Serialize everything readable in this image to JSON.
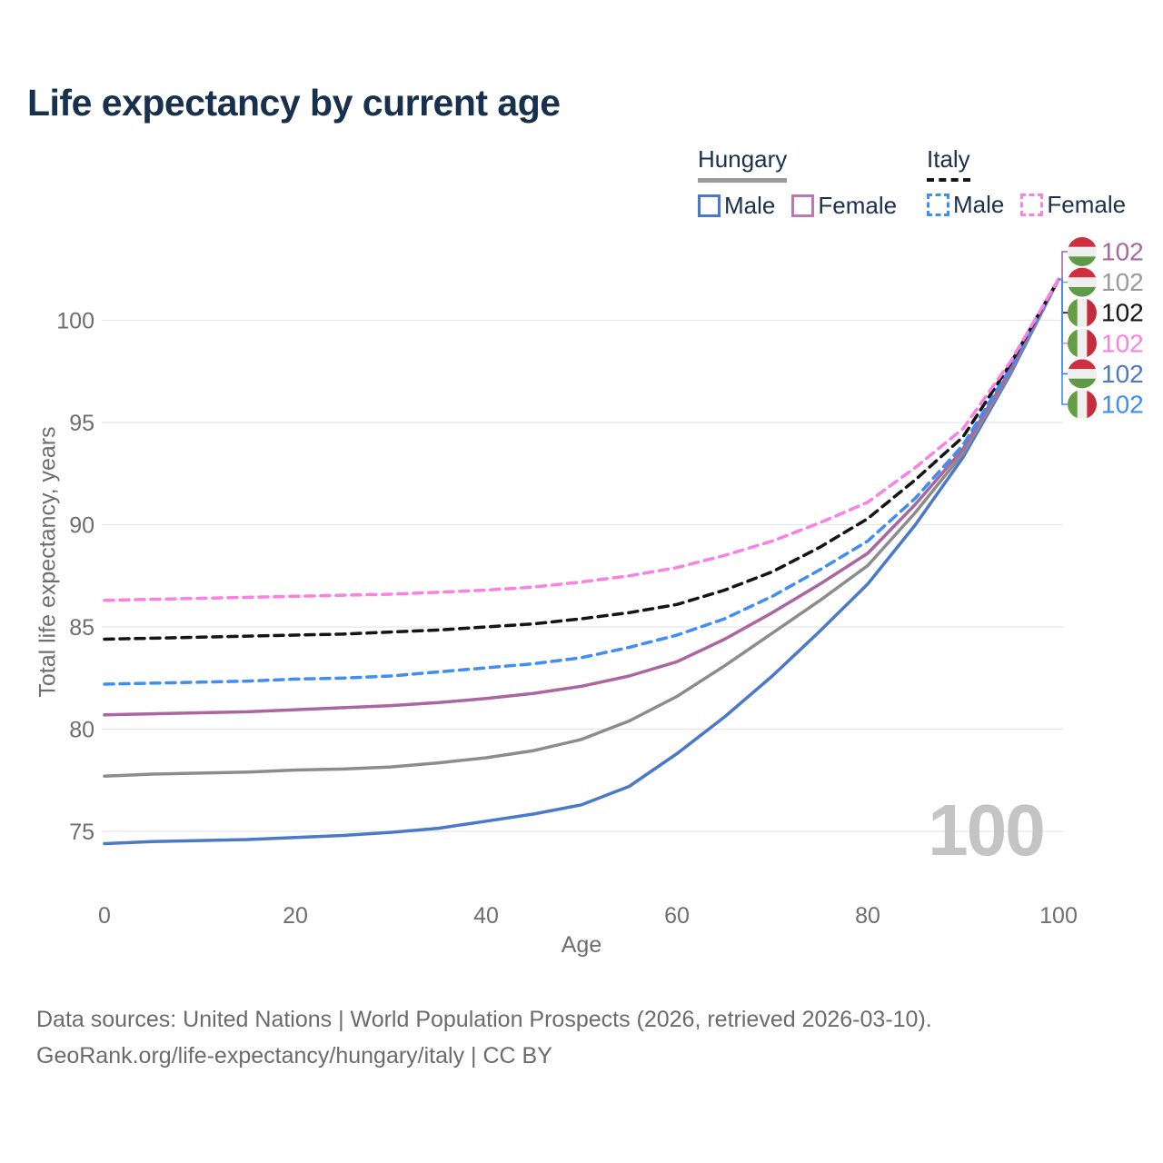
{
  "title": "Life expectancy by current age",
  "legend": {
    "groups": [
      {
        "name": "Hungary",
        "line_style": "solid",
        "underline_color": "#9a9a9a",
        "items": [
          {
            "label": "Male",
            "color": "#4b79c9"
          },
          {
            "label": "Female",
            "color": "#bc77b4"
          }
        ]
      },
      {
        "name": "Italy",
        "line_style": "dashed",
        "underline_color": "#161616",
        "items": [
          {
            "label": "Male",
            "color": "#3e8ef5"
          },
          {
            "label": "Female",
            "color": "#fb80e3"
          }
        ]
      }
    ]
  },
  "watermark_age": "100",
  "footer": {
    "line1": "Data sources: United Nations | World Population Prospects (2026, retrieved 2026-03-10).",
    "line2": "GeoRank.org/life-expectancy/hungary/italy | CC BY"
  },
  "chart_data": {
    "type": "line",
    "title": "Life expectancy by current age",
    "xlabel": "Age",
    "ylabel": "Total life expectancy, years",
    "xlim": [
      0,
      100
    ],
    "ylim": [
      73,
      104
    ],
    "xticks": [
      0,
      20,
      40,
      60,
      80,
      100
    ],
    "yticks": [
      75,
      80,
      85,
      90,
      95,
      100
    ],
    "grid": "horizontal-only",
    "legend_position": "top-right",
    "x": [
      0,
      5,
      10,
      15,
      20,
      25,
      30,
      35,
      40,
      45,
      50,
      55,
      60,
      65,
      70,
      75,
      80,
      85,
      90,
      95,
      100
    ],
    "flag_colors": {
      "hu": [
        "#cf2f3f",
        "#efefef",
        "#5f9a48"
      ],
      "it": [
        "#669c45",
        "#efefef",
        "#c42c3e"
      ]
    },
    "series": [
      {
        "id": "hungary-male",
        "country": "Hungary",
        "group": "Male",
        "color": "#4b79c9",
        "dashed": false,
        "flag": "hu",
        "end_label": "102",
        "label_color": "#4b79c9",
        "label_slot": 4,
        "values": [
          74.4,
          74.5,
          74.55,
          74.6,
          74.7,
          74.8,
          74.95,
          75.15,
          75.5,
          75.85,
          76.3,
          77.2,
          78.8,
          80.6,
          82.6,
          84.8,
          87.1,
          90.0,
          93.3,
          97.4,
          102
        ]
      },
      {
        "id": "hungary-total",
        "country": "Hungary",
        "group": "Both sexes",
        "color": "#8c8c8c",
        "dashed": false,
        "flag": "hu",
        "end_label": "102",
        "label_color": "#9b9b9b",
        "label_slot": 1,
        "values": [
          77.7,
          77.8,
          77.85,
          77.9,
          78.0,
          78.05,
          78.15,
          78.35,
          78.6,
          78.95,
          79.5,
          80.4,
          81.6,
          83.1,
          84.7,
          86.3,
          88.0,
          90.6,
          93.5,
          97.5,
          102
        ]
      },
      {
        "id": "hungary-female",
        "country": "Hungary",
        "group": "Female",
        "color": "#aa66a0",
        "dashed": false,
        "flag": "hu",
        "end_label": "102",
        "label_color": "#aa66a0",
        "label_slot": 0,
        "values": [
          80.7,
          80.75,
          80.8,
          80.85,
          80.95,
          81.05,
          81.15,
          81.3,
          81.5,
          81.75,
          82.1,
          82.6,
          83.3,
          84.4,
          85.7,
          87.1,
          88.6,
          91.0,
          93.7,
          97.6,
          102
        ]
      },
      {
        "id": "italy-male",
        "country": "Italy",
        "group": "Male",
        "color": "#3e8ef5",
        "dashed": true,
        "flag": "it",
        "end_label": "102",
        "label_color": "#3e8ef5",
        "label_slot": 5,
        "values": [
          82.2,
          82.25,
          82.3,
          82.35,
          82.45,
          82.5,
          82.6,
          82.8,
          83.0,
          83.2,
          83.5,
          84.0,
          84.6,
          85.4,
          86.5,
          87.8,
          89.2,
          91.3,
          93.9,
          97.7,
          102
        ]
      },
      {
        "id": "italy-total",
        "country": "Italy",
        "group": "Both sexes",
        "color": "#141414",
        "dashed": true,
        "flag": "it",
        "end_label": "102",
        "label_color": "#141414",
        "label_slot": 2,
        "values": [
          84.4,
          84.45,
          84.5,
          84.55,
          84.6,
          84.65,
          84.75,
          84.85,
          85.0,
          85.15,
          85.4,
          85.7,
          86.1,
          86.8,
          87.7,
          88.9,
          90.3,
          92.2,
          94.3,
          97.9,
          102
        ]
      },
      {
        "id": "italy-female",
        "country": "Italy",
        "group": "Female",
        "color": "#fb80e3",
        "dashed": true,
        "flag": "it",
        "end_label": "102",
        "label_color": "#fb80e3",
        "label_slot": 3,
        "values": [
          86.3,
          86.35,
          86.4,
          86.45,
          86.5,
          86.55,
          86.6,
          86.7,
          86.8,
          86.95,
          87.2,
          87.5,
          87.9,
          88.5,
          89.2,
          90.1,
          91.1,
          92.8,
          94.7,
          98.0,
          102
        ]
      }
    ]
  }
}
